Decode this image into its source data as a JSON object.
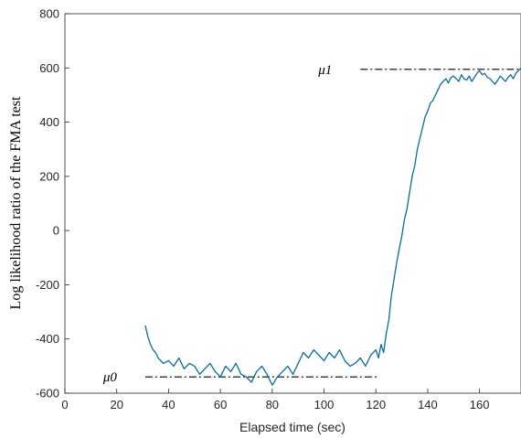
{
  "chart_data": {
    "type": "line",
    "xlabel": "Elapsed time (sec)",
    "ylabel": "Log likelihood ratio of the FMA test",
    "xlim": [
      0,
      176
    ],
    "ylim": [
      -600,
      800
    ],
    "xticks": [
      0,
      20,
      40,
      60,
      80,
      100,
      120,
      140,
      160
    ],
    "yticks": [
      -600,
      -400,
      -200,
      0,
      200,
      400,
      600,
      800
    ],
    "grid": false,
    "series_color": "#0b6e99",
    "series": [
      {
        "x": [
          31,
          32,
          33,
          34,
          35,
          36,
          38,
          40,
          42,
          44,
          46,
          48,
          50,
          52,
          54,
          56,
          58,
          60,
          62,
          64,
          66,
          68,
          70,
          72,
          74,
          76,
          78,
          80,
          82,
          84,
          86,
          88,
          90,
          92,
          94,
          96,
          98,
          100,
          102,
          104,
          106,
          108,
          110,
          112,
          114,
          116,
          118,
          120,
          121,
          122,
          123,
          124,
          125,
          126,
          127,
          128,
          129,
          130,
          131,
          132,
          133,
          134,
          135,
          136,
          137,
          138,
          139,
          140,
          141,
          142,
          143,
          144,
          145,
          146,
          147,
          148,
          149,
          150,
          151,
          152,
          153,
          154,
          155,
          156,
          157,
          158,
          159,
          160,
          161,
          162,
          163,
          164,
          165,
          166,
          167,
          168,
          169,
          170,
          171,
          172,
          173,
          174,
          175,
          176
        ],
        "y": [
          -350,
          -390,
          -420,
          -440,
          -450,
          -470,
          -490,
          -480,
          -500,
          -470,
          -510,
          -490,
          -500,
          -530,
          -510,
          -490,
          -520,
          -540,
          -500,
          -520,
          -490,
          -530,
          -540,
          -560,
          -520,
          -500,
          -530,
          -570,
          -540,
          -520,
          -500,
          -530,
          -490,
          -450,
          -470,
          -440,
          -460,
          -480,
          -450,
          -470,
          -440,
          -480,
          -500,
          -490,
          -470,
          -500,
          -460,
          -440,
          -470,
          -420,
          -450,
          -380,
          -330,
          -240,
          -180,
          -120,
          -70,
          -20,
          40,
          80,
          140,
          200,
          240,
          300,
          340,
          380,
          420,
          440,
          470,
          480,
          500,
          520,
          540,
          550,
          560,
          545,
          565,
          570,
          560,
          550,
          575,
          560,
          555,
          570,
          550,
          565,
          580,
          590,
          575,
          580,
          565,
          560,
          550,
          540,
          555,
          570,
          560,
          550,
          565,
          575,
          560,
          580,
          590,
          600
        ]
      }
    ],
    "references": [
      {
        "label": "μ1",
        "y": 595,
        "x_start": 114,
        "x_end": 176
      },
      {
        "label": "μ0",
        "y": -540,
        "x_start": 31,
        "x_end": 121
      }
    ]
  }
}
